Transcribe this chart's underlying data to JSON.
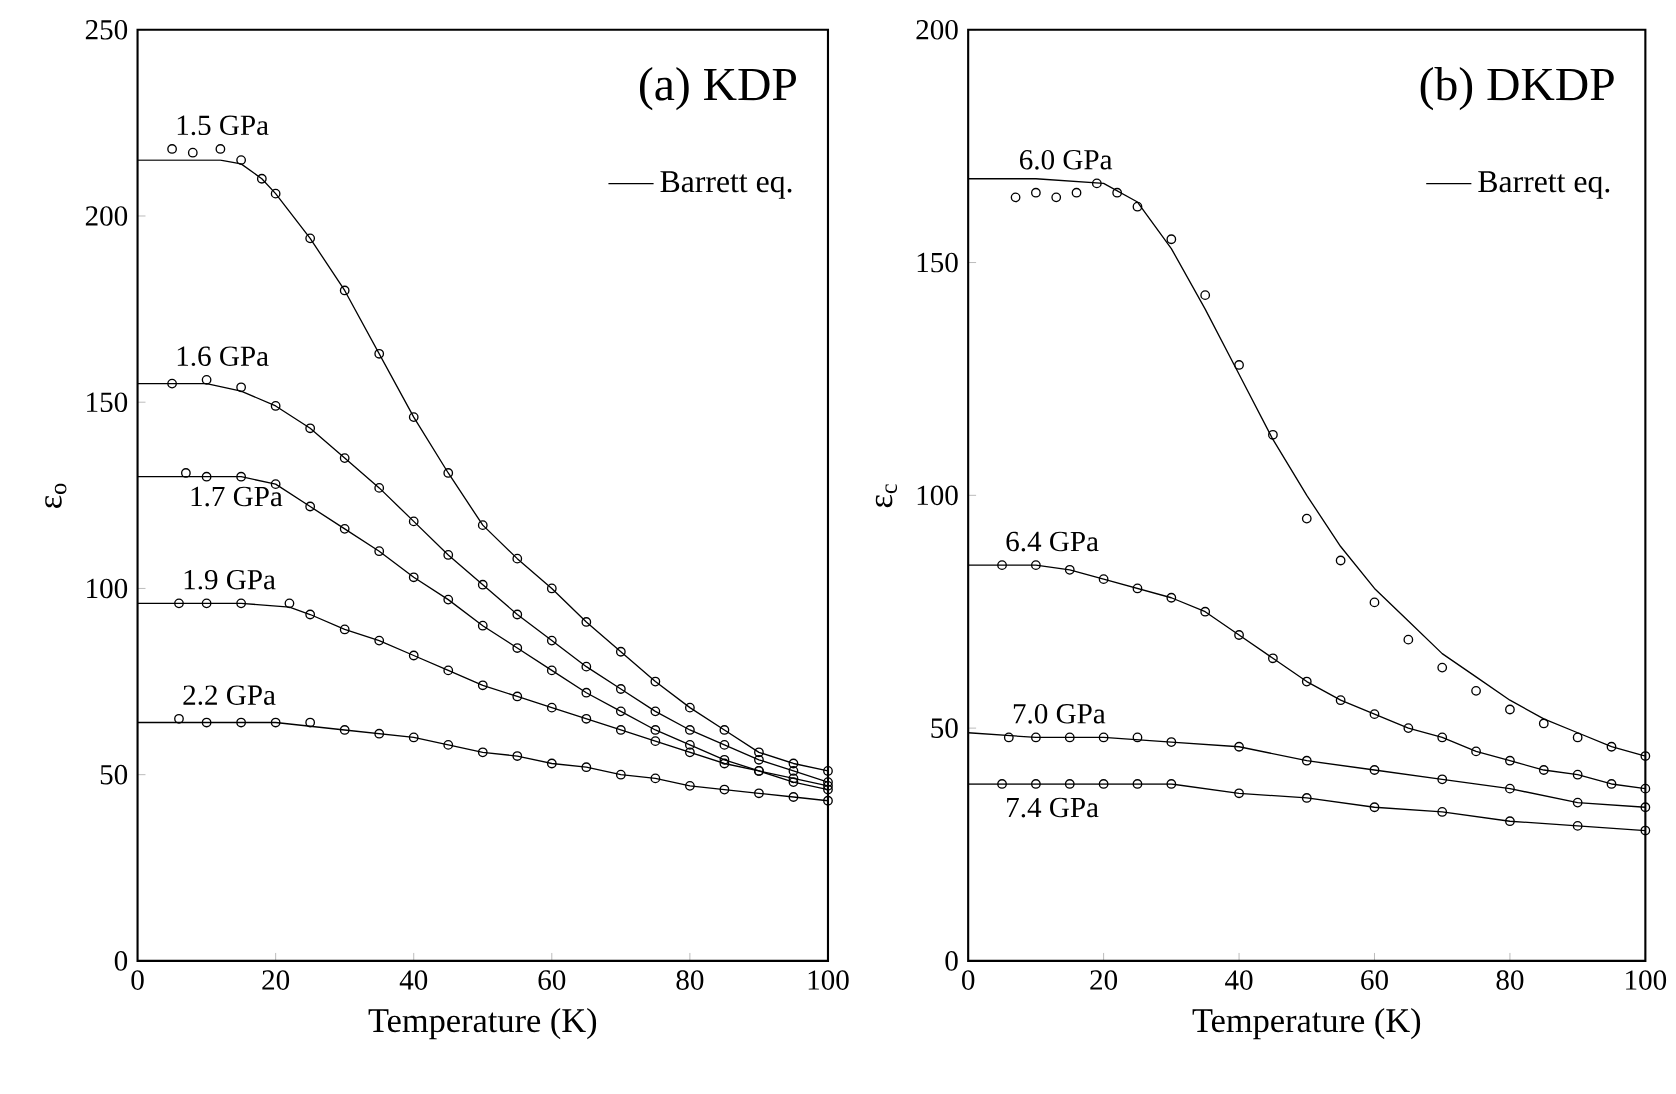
{
  "chart_data": [
    {
      "type": "scatter",
      "title": "(a) KDP",
      "xlabel": "Temperature (K)",
      "ylabel": "ε$_{o}$",
      "xlim": [
        0,
        100
      ],
      "ylim": [
        0,
        250
      ],
      "xticks": [
        0,
        20,
        40,
        60,
        80,
        100
      ],
      "yticks": [
        0,
        50,
        100,
        150,
        200,
        250
      ],
      "marker": "circle",
      "legend": "top right",
      "series": [
        {
          "name": "1.5 GPa",
          "color": "#000000",
          "x": [
            5,
            8,
            12,
            15,
            18,
            20,
            25,
            30,
            35,
            40,
            45,
            50,
            55,
            60,
            65,
            70,
            75,
            80,
            85,
            90,
            95,
            100
          ],
          "values": [
            218,
            217,
            218,
            215,
            210,
            206,
            194,
            180,
            163,
            146,
            131,
            117,
            108,
            100,
            91,
            83,
            75,
            68,
            62,
            56,
            53,
            51
          ]
        },
        {
          "name": "1.6 GPa",
          "color": "#000000",
          "x": [
            5,
            10,
            15,
            20,
            25,
            30,
            35,
            40,
            45,
            50,
            55,
            60,
            65,
            70,
            75,
            80,
            85,
            90,
            95,
            100
          ],
          "values": [
            155,
            156,
            154,
            149,
            143,
            135,
            127,
            118,
            109,
            101,
            93,
            86,
            79,
            73,
            67,
            62,
            58,
            54,
            51,
            48
          ]
        },
        {
          "name": "1.7 GPa",
          "color": "#000000",
          "x": [
            7,
            10,
            15,
            20,
            25,
            30,
            35,
            40,
            45,
            50,
            55,
            60,
            65,
            70,
            75,
            80,
            85,
            90,
            95,
            100
          ],
          "values": [
            131,
            130,
            130,
            128,
            122,
            116,
            110,
            103,
            97,
            90,
            84,
            78,
            72,
            67,
            62,
            58,
            54,
            51,
            48,
            46
          ]
        },
        {
          "name": "1.9 GPa",
          "color": "#000000",
          "x": [
            6,
            10,
            15,
            22,
            25,
            30,
            35,
            40,
            45,
            50,
            55,
            60,
            65,
            70,
            75,
            80,
            85,
            90,
            95,
            100
          ],
          "values": [
            96,
            96,
            96,
            96,
            93,
            89,
            86,
            82,
            78,
            74,
            71,
            68,
            65,
            62,
            59,
            56,
            53,
            51,
            49,
            47
          ]
        },
        {
          "name": "2.2 GPa",
          "color": "#000000",
          "x": [
            6,
            10,
            15,
            20,
            25,
            30,
            35,
            40,
            45,
            50,
            55,
            60,
            65,
            70,
            75,
            80,
            85,
            90,
            95,
            100
          ],
          "values": [
            65,
            64,
            64,
            64,
            64,
            62,
            61,
            60,
            58,
            56,
            55,
            53,
            52,
            50,
            49,
            47,
            46,
            45,
            44,
            43
          ]
        },
        {
          "type": "line",
          "marker": "none",
          "name": "Barrett eq.",
          "color": "#000000",
          "x": [
            0,
            5,
            12,
            15,
            18,
            20,
            25,
            30,
            35,
            40,
            45,
            50,
            55,
            60,
            65,
            70,
            75,
            80,
            85,
            90,
            95,
            100
          ],
          "values": [
            215,
            215,
            215,
            214,
            210,
            206,
            194,
            180,
            163,
            146,
            131,
            117,
            108,
            100,
            91,
            83,
            75,
            68,
            62,
            56,
            53,
            51
          ]
        },
        {
          "type": "line",
          "marker": "none",
          "color": "#000000",
          "x": [
            0,
            5,
            10,
            15,
            20,
            25,
            30,
            35,
            40,
            45,
            50,
            55,
            60,
            65,
            70,
            75,
            80,
            85,
            90,
            95,
            100
          ],
          "values": [
            155,
            155,
            155,
            153,
            149,
            143,
            135,
            127,
            118,
            109,
            101,
            93,
            86,
            79,
            73,
            67,
            62,
            58,
            54,
            51,
            48
          ]
        },
        {
          "type": "line",
          "marker": "none",
          "color": "#000000",
          "x": [
            0,
            5,
            10,
            15,
            20,
            25,
            30,
            35,
            40,
            45,
            50,
            55,
            60,
            65,
            70,
            75,
            80,
            85,
            90,
            95,
            100
          ],
          "values": [
            130,
            130,
            130,
            130,
            128,
            122,
            116,
            110,
            103,
            97,
            90,
            84,
            78,
            72,
            67,
            62,
            58,
            54,
            51,
            48,
            46
          ]
        },
        {
          "type": "line",
          "marker": "none",
          "color": "#000000",
          "x": [
            0,
            5,
            10,
            15,
            22,
            25,
            30,
            35,
            40,
            45,
            50,
            55,
            60,
            65,
            70,
            75,
            80,
            85,
            90,
            95,
            100
          ],
          "values": [
            96,
            96,
            96,
            96,
            95,
            93,
            89,
            86,
            82,
            78,
            74,
            71,
            68,
            65,
            62,
            59,
            56,
            53,
            51,
            49,
            47
          ]
        },
        {
          "type": "line",
          "marker": "none",
          "color": "#000000",
          "x": [
            0,
            5,
            10,
            15,
            20,
            25,
            30,
            35,
            40,
            45,
            50,
            55,
            60,
            65,
            70,
            75,
            80,
            85,
            90,
            95,
            100
          ],
          "values": [
            64,
            64,
            64,
            64,
            64,
            63,
            62,
            61,
            60,
            58,
            56,
            55,
            53,
            52,
            50,
            49,
            47,
            46,
            45,
            44,
            43
          ]
        }
      ]
    },
    {
      "type": "scatter",
      "title": "(b) DKDP",
      "xlabel": "Temperature (K)",
      "ylabel": "ε$_{c}$",
      "xlim": [
        0,
        100
      ],
      "ylim": [
        0,
        200
      ],
      "xticks": [
        0,
        20,
        40,
        60,
        80,
        100
      ],
      "yticks": [
        0,
        50,
        100,
        150,
        200
      ],
      "marker": "circle",
      "legend": "top right",
      "series": [
        {
          "name": "6.0 GPa",
          "color": "#000000",
          "x": [
            7,
            10,
            13,
            16,
            19,
            22,
            25,
            30,
            35,
            40,
            45,
            50,
            55,
            60,
            65,
            70,
            75,
            80,
            85,
            90,
            95,
            100
          ],
          "values": [
            164,
            165,
            164,
            165,
            167,
            165,
            162,
            155,
            143,
            128,
            113,
            95,
            86,
            77,
            69,
            63,
            58,
            54,
            51,
            48,
            46,
            44
          ]
        },
        {
          "name": "6.4 GPa",
          "color": "#000000",
          "x": [
            5,
            10,
            15,
            20,
            25,
            30,
            35,
            40,
            45,
            50,
            55,
            60,
            65,
            70,
            75,
            80,
            85,
            90,
            95,
            100
          ],
          "values": [
            85,
            85,
            84,
            82,
            80,
            78,
            75,
            70,
            65,
            60,
            56,
            53,
            50,
            48,
            45,
            43,
            41,
            40,
            38,
            37
          ]
        },
        {
          "name": "7.0 GPa",
          "color": "#000000",
          "x": [
            6,
            10,
            15,
            20,
            25,
            30,
            40,
            50,
            60,
            70,
            80,
            90,
            100
          ],
          "values": [
            48,
            48,
            48,
            48,
            48,
            47,
            46,
            43,
            41,
            39,
            37,
            34,
            33
          ]
        },
        {
          "name": "7.4 GPa",
          "color": "#000000",
          "x": [
            5,
            10,
            15,
            20,
            25,
            30,
            40,
            50,
            60,
            70,
            80,
            90,
            100
          ],
          "values": [
            38,
            38,
            38,
            38,
            38,
            38,
            36,
            35,
            33,
            32,
            30,
            29,
            28
          ]
        },
        {
          "type": "line",
          "marker": "none",
          "name": "Barrett eq.",
          "color": "#000000",
          "x": [
            0,
            10,
            20,
            25,
            30,
            35,
            40,
            45,
            50,
            55,
            60,
            65,
            70,
            75,
            80,
            85,
            90,
            95,
            100
          ],
          "values": [
            168,
            168,
            167,
            163,
            153,
            140,
            126,
            112,
            100,
            89,
            80,
            73,
            66,
            61,
            56,
            52,
            49,
            46,
            44
          ]
        },
        {
          "type": "line",
          "marker": "none",
          "color": "#000000",
          "x": [
            0,
            5,
            10,
            15,
            20,
            25,
            30,
            35,
            40,
            45,
            50,
            55,
            60,
            65,
            70,
            75,
            80,
            85,
            90,
            95,
            100
          ],
          "values": [
            85,
            85,
            85,
            84,
            82,
            80,
            78,
            75,
            70,
            65,
            60,
            56,
            53,
            50,
            48,
            45,
            43,
            41,
            40,
            38,
            37
          ]
        },
        {
          "type": "line",
          "marker": "none",
          "color": "#000000",
          "x": [
            0,
            10,
            20,
            30,
            40,
            50,
            60,
            70,
            80,
            90,
            100
          ],
          "values": [
            49,
            48,
            48,
            47,
            46,
            43,
            41,
            39,
            37,
            34,
            33
          ]
        },
        {
          "type": "line",
          "marker": "none",
          "color": "#000000",
          "x": [
            0,
            10,
            20,
            30,
            40,
            50,
            60,
            70,
            80,
            90,
            100
          ],
          "values": [
            38,
            38,
            38,
            38,
            36,
            35,
            33,
            32,
            30,
            29,
            28
          ]
        }
      ]
    }
  ]
}
